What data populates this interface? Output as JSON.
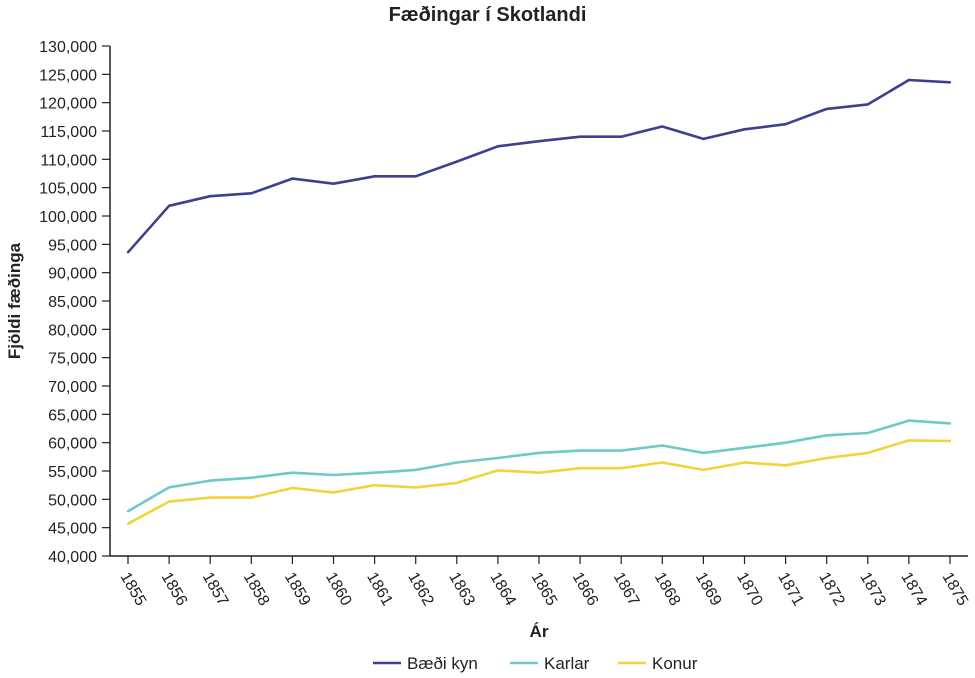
{
  "chart_data": {
    "type": "line",
    "title": "Fæðingar í Skotlandi",
    "xlabel": "Ár",
    "ylabel": "Fjöldi fæðinga",
    "x": [
      "1855",
      "1856",
      "1857",
      "1858",
      "1859",
      "1860",
      "1861",
      "1862",
      "1863",
      "1864",
      "1865",
      "1866",
      "1867",
      "1868",
      "1869",
      "1870",
      "1871",
      "1872",
      "1873",
      "1874",
      "1875"
    ],
    "ylim": [
      40000,
      130000
    ],
    "ytick_step": 5000,
    "grid": false,
    "legend_position": "bottom",
    "series": [
      {
        "name": "Bæði kyn",
        "color": "#3f3f8f",
        "values": [
          93600,
          101800,
          103500,
          104000,
          106600,
          105700,
          107000,
          107000,
          109600,
          112300,
          113200,
          114000,
          114000,
          115800,
          113600,
          115300,
          116200,
          118900,
          119700,
          124000,
          123600
        ]
      },
      {
        "name": "Karlar",
        "color": "#6ec9c9",
        "values": [
          47900,
          52100,
          53300,
          53800,
          54700,
          54300,
          54700,
          55200,
          56500,
          57300,
          58200,
          58600,
          58600,
          59500,
          58200,
          59100,
          60000,
          61300,
          61700,
          63900,
          63400
        ]
      },
      {
        "name": "Konur",
        "color": "#f0d43a",
        "values": [
          45700,
          49600,
          50300,
          50300,
          52000,
          51200,
          52500,
          52100,
          52900,
          55100,
          54700,
          55500,
          55500,
          56500,
          55200,
          56500,
          56000,
          57300,
          58200,
          60400,
          60300
        ]
      }
    ]
  }
}
